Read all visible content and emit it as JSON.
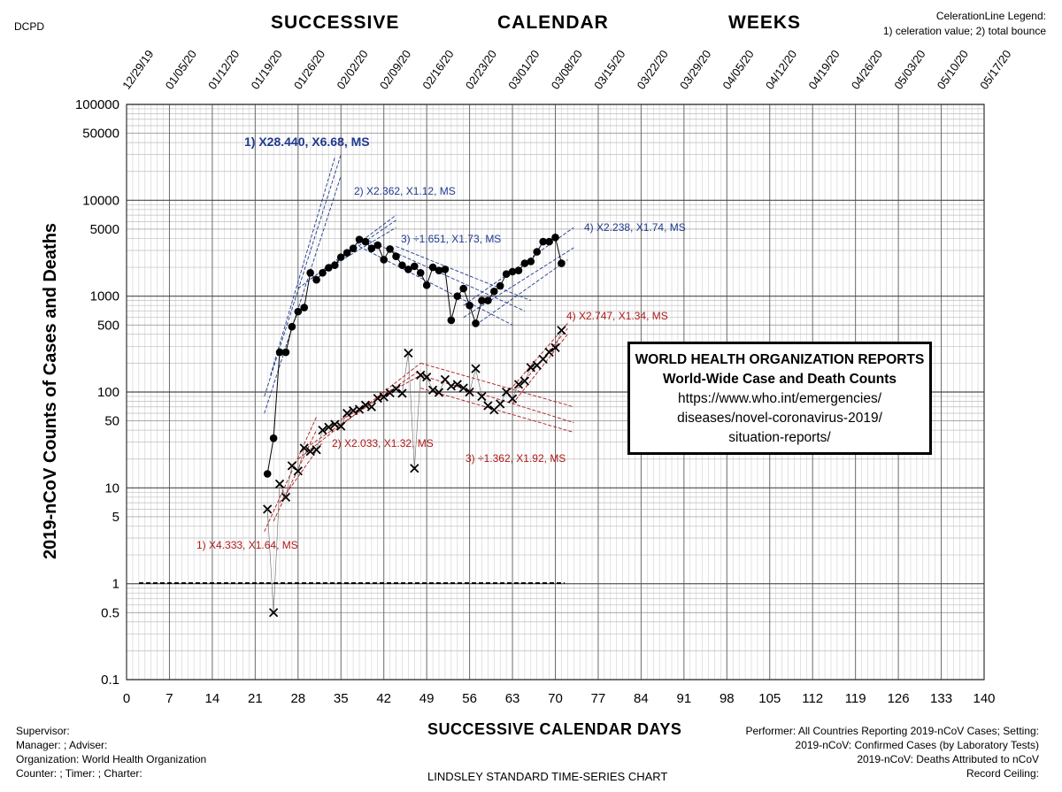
{
  "header": {
    "corner_label": "DCPD",
    "words": [
      "SUCCESSIVE",
      "CALENDAR",
      "WEEKS"
    ],
    "legend_title": "CelerationLine Legend:",
    "legend_text": "1) celeration value;  2) total bounce"
  },
  "who_box": {
    "line1": "WORLD HEALTH ORGANIZATION REPORTS",
    "line2": "World-Wide Case and Death Counts",
    "line3": "https://www.who.int/emergencies/",
    "line4": "diseases/novel-coronavirus-2019/",
    "line5": "situation-reports/"
  },
  "footer": {
    "left": [
      "Supervisor:",
      "Manager: ; Adviser:",
      "Organization: World Health Organization",
      "Counter: ; Timer: ; Charter:"
    ],
    "right": [
      "Performer: All Countries Reporting 2019-nCoV Cases; Setting:",
      "2019-nCoV: Confirmed Cases (by Laboratory Tests)",
      "2019-nCoV: Deaths Attributed to nCoV",
      "Record Ceiling:"
    ],
    "bottom_title": "LINDSLEY STANDARD TIME-SERIES CHART"
  },
  "chart_data": {
    "type": "scatter",
    "xlabel": "SUCCESSIVE CALENDAR DAYS",
    "ylabel": "2019-nCoV Counts of Cases and Deaths",
    "xlim": [
      0,
      140
    ],
    "ylim": [
      0.1,
      100000
    ],
    "yscale": "log",
    "x_ticks": [
      0,
      7,
      14,
      21,
      28,
      35,
      42,
      49,
      56,
      63,
      70,
      77,
      84,
      91,
      98,
      105,
      112,
      119,
      126,
      133,
      140
    ],
    "y_tick_labels": [
      "0.1",
      "0.5",
      "1",
      "5",
      "10",
      "50",
      "100",
      "500",
      "1000",
      "5000",
      "10000",
      "50000",
      "100000"
    ],
    "y_tick_values": [
      0.1,
      0.5,
      1,
      5,
      10,
      50,
      100,
      500,
      1000,
      5000,
      10000,
      50000,
      100000
    ],
    "top_dates": [
      "12/29/19",
      "01/05/20",
      "01/12/20",
      "01/19/20",
      "01/26/20",
      "02/02/20",
      "02/09/20",
      "02/16/20",
      "02/23/20",
      "03/01/20",
      "03/08/20",
      "03/15/20",
      "03/22/20",
      "03/29/20",
      "04/05/20",
      "04/12/20",
      "04/19/20",
      "04/26/20",
      "05/03/20",
      "05/10/20",
      "05/17/20"
    ],
    "record_floor": 1,
    "series": [
      {
        "marker": "dot",
        "color": "#000000",
        "x": [
          23,
          24,
          25,
          26,
          27,
          28,
          29,
          30,
          31,
          32,
          33,
          34,
          35,
          36,
          37,
          38,
          39,
          40,
          41,
          42,
          43,
          44,
          45,
          46,
          47,
          48,
          49,
          50,
          51,
          52,
          53,
          54,
          55,
          56,
          57,
          58,
          59,
          60,
          61,
          62,
          63,
          64,
          65,
          66,
          67,
          68,
          69,
          70,
          71
        ],
        "y": [
          14,
          33,
          260,
          260,
          480,
          690,
          760,
          1750,
          1480,
          1750,
          1980,
          2100,
          2550,
          2830,
          3150,
          3900,
          3700,
          3150,
          3400,
          2400,
          3100,
          2600,
          2100,
          1900,
          2050,
          1750,
          1300,
          2000,
          1850,
          1900,
          560,
          1000,
          1200,
          800,
          520,
          900,
          900,
          1120,
          1280,
          1700,
          1800,
          1850,
          2200,
          2300,
          2900,
          3700,
          3700,
          4100,
          2200
        ]
      },
      {
        "marker": "x",
        "color": "#000000",
        "x": [
          23,
          24,
          25,
          26,
          27,
          28,
          29,
          30,
          31,
          32,
          33,
          34,
          35,
          36,
          37,
          38,
          39,
          40,
          41,
          42,
          43,
          44,
          45,
          46,
          47,
          48,
          49,
          50,
          51,
          52,
          53,
          54,
          55,
          56,
          57,
          58,
          59,
          60,
          61,
          62,
          63,
          64,
          65,
          66,
          67,
          68,
          69,
          70,
          71
        ],
        "y": [
          6,
          0.5,
          11,
          8,
          17,
          15,
          26,
          24,
          25,
          40,
          43,
          46,
          44,
          60,
          64,
          66,
          73,
          70,
          86,
          89,
          98,
          108,
          97,
          255,
          16,
          150,
          143,
          105,
          99,
          135,
          115,
          120,
          110,
          100,
          175,
          90,
          72,
          65,
          75,
          100,
          85,
          120,
          130,
          180,
          190,
          220,
          260,
          290,
          440
        ]
      }
    ],
    "celeration_lines": [
      {
        "label": "1)  X28.440, X6.68, MS",
        "color": "#1f3a8f"
      },
      {
        "label": "2) X2.362, X1.12, MS",
        "color": "#1f3a8f"
      },
      {
        "label": "3) ÷1.651, X1.73, MS",
        "color": "#1f3a8f"
      },
      {
        "label": "4) X2.238, X1.74, MS",
        "color": "#1f3a8f"
      },
      {
        "label": "1) X4.333, X1.64, MS",
        "color": "#b01818"
      },
      {
        "label": "2) X2.033, X1.32, MS",
        "color": "#b01818"
      },
      {
        "label": "3) ÷1.362, X1.92, MS",
        "color": "#b01818"
      },
      {
        "label": "4) X2.747, X1.34, MS",
        "color": "#b01818"
      }
    ]
  }
}
